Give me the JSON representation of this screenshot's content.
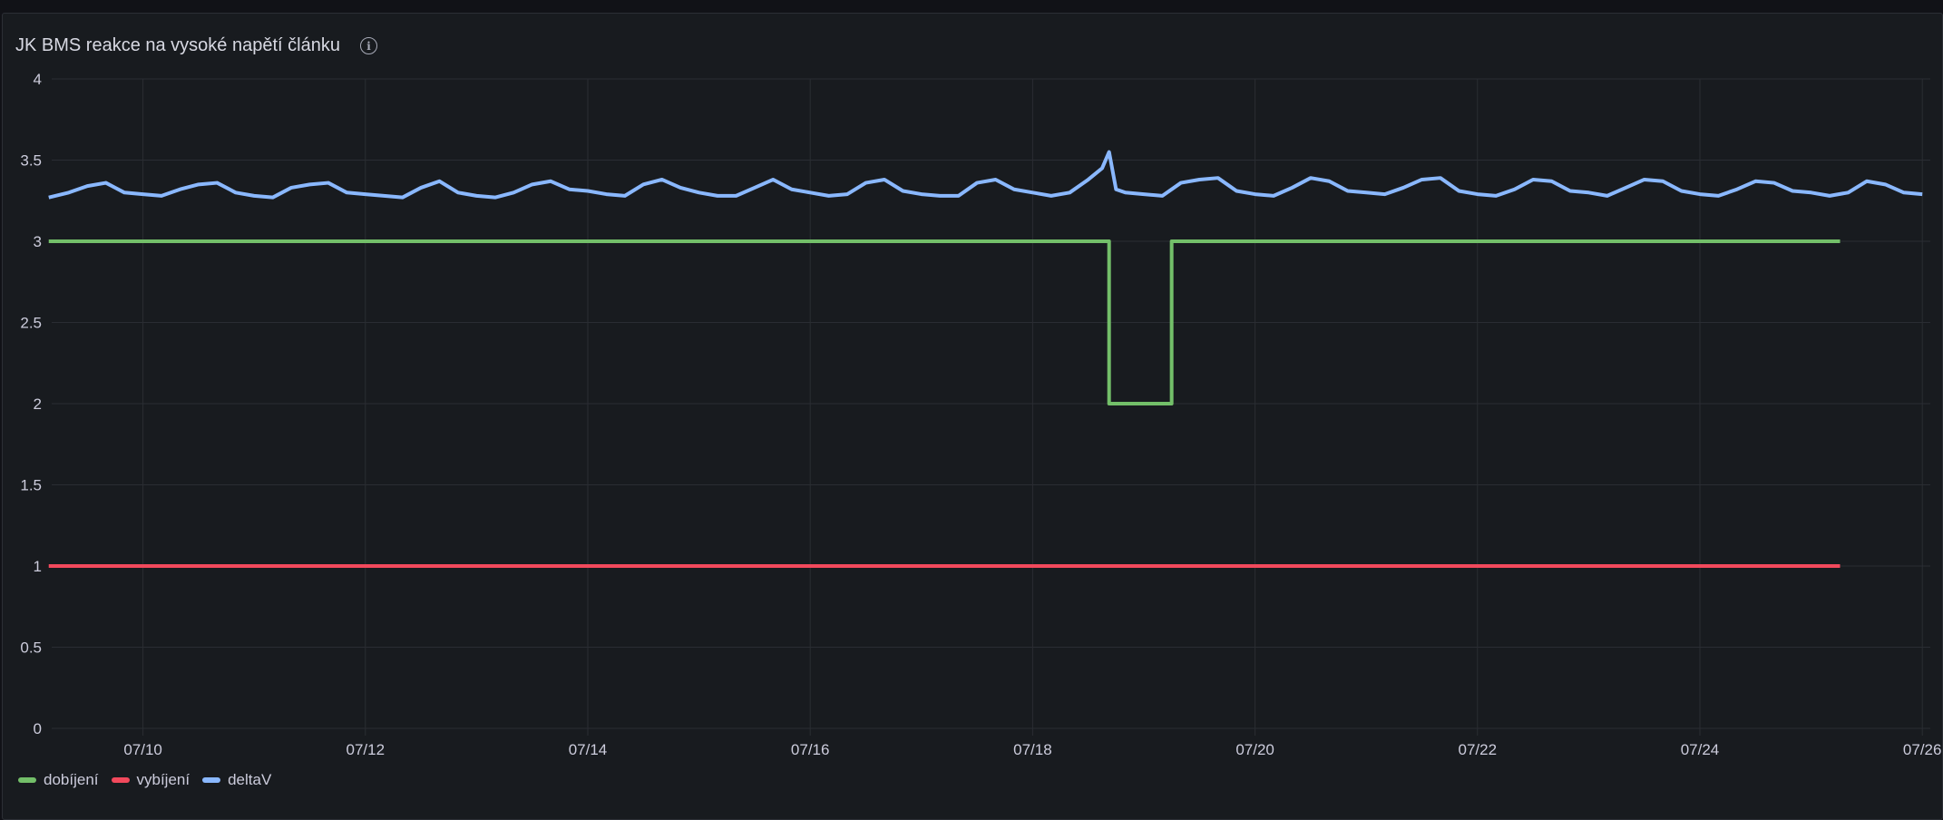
{
  "panel": {
    "title": "JK BMS reakce na vysoké napětí článku",
    "info_icon": "info-circle-icon"
  },
  "chart_data": {
    "type": "line",
    "title": "JK BMS reakce na vysoké napětí článku",
    "xlabel": "",
    "ylabel": "",
    "ylim": [
      0,
      4
    ],
    "y_ticks": [
      "0",
      "0.5",
      "1",
      "1.5",
      "2",
      "2.5",
      "3",
      "3.5",
      "4"
    ],
    "x_ticks": [
      "07/10",
      "07/12",
      "07/14",
      "07/16",
      "07/18",
      "07/20",
      "07/22",
      "07/24",
      "07/26"
    ],
    "grid": true,
    "legend": "bottom-left",
    "series": [
      {
        "name": "dobíjení",
        "color": "#73bf69",
        "step": true,
        "points": [
          [
            "07/09 03:40",
            3
          ],
          [
            "07/18 16:30",
            2
          ],
          [
            "07/19 06:00",
            3
          ],
          [
            "07/25 06:15",
            3
          ]
        ]
      },
      {
        "name": "vybíjení",
        "color": "#f2495c",
        "step": true,
        "points": [
          [
            "07/09 03:40",
            1
          ],
          [
            "07/25 06:15",
            1
          ]
        ]
      },
      {
        "name": "deltaV",
        "color": "#8ab8ff",
        "step": false,
        "points": [
          [
            "07/09 03:40",
            3.27
          ],
          [
            "07/09 08:00",
            3.3
          ],
          [
            "07/09 12:00",
            3.34
          ],
          [
            "07/09 16:00",
            3.36
          ],
          [
            "07/09 20:00",
            3.3
          ],
          [
            "07/10 00:00",
            3.29
          ],
          [
            "07/10 04:00",
            3.28
          ],
          [
            "07/10 08:00",
            3.32
          ],
          [
            "07/10 12:00",
            3.35
          ],
          [
            "07/10 16:00",
            3.36
          ],
          [
            "07/10 20:00",
            3.3
          ],
          [
            "07/11 00:00",
            3.28
          ],
          [
            "07/11 04:00",
            3.27
          ],
          [
            "07/11 08:00",
            3.33
          ],
          [
            "07/11 12:00",
            3.35
          ],
          [
            "07/11 16:00",
            3.36
          ],
          [
            "07/11 20:00",
            3.3
          ],
          [
            "07/12 00:00",
            3.29
          ],
          [
            "07/12 04:00",
            3.28
          ],
          [
            "07/12 08:00",
            3.27
          ],
          [
            "07/12 12:00",
            3.33
          ],
          [
            "07/12 16:00",
            3.37
          ],
          [
            "07/12 20:00",
            3.3
          ],
          [
            "07/13 00:00",
            3.28
          ],
          [
            "07/13 04:00",
            3.27
          ],
          [
            "07/13 08:00",
            3.3
          ],
          [
            "07/13 12:00",
            3.35
          ],
          [
            "07/13 16:00",
            3.37
          ],
          [
            "07/13 20:00",
            3.32
          ],
          [
            "07/14 00:00",
            3.31
          ],
          [
            "07/14 04:00",
            3.29
          ],
          [
            "07/14 08:00",
            3.28
          ],
          [
            "07/14 12:00",
            3.35
          ],
          [
            "07/14 16:00",
            3.38
          ],
          [
            "07/14 20:00",
            3.33
          ],
          [
            "07/15 00:00",
            3.3
          ],
          [
            "07/15 04:00",
            3.28
          ],
          [
            "07/15 08:00",
            3.28
          ],
          [
            "07/15 12:00",
            3.33
          ],
          [
            "07/15 16:00",
            3.38
          ],
          [
            "07/15 20:00",
            3.32
          ],
          [
            "07/16 00:00",
            3.3
          ],
          [
            "07/16 04:00",
            3.28
          ],
          [
            "07/16 08:00",
            3.29
          ],
          [
            "07/16 12:00",
            3.36
          ],
          [
            "07/16 16:00",
            3.38
          ],
          [
            "07/16 20:00",
            3.31
          ],
          [
            "07/17 00:00",
            3.29
          ],
          [
            "07/17 04:00",
            3.28
          ],
          [
            "07/17 08:00",
            3.28
          ],
          [
            "07/17 12:00",
            3.36
          ],
          [
            "07/17 16:00",
            3.38
          ],
          [
            "07/17 20:00",
            3.32
          ],
          [
            "07/18 00:00",
            3.3
          ],
          [
            "07/18 04:00",
            3.28
          ],
          [
            "07/18 08:00",
            3.3
          ],
          [
            "07/18 12:00",
            3.38
          ],
          [
            "07/18 15:00",
            3.45
          ],
          [
            "07/18 16:30",
            3.55
          ],
          [
            "07/18 18:00",
            3.32
          ],
          [
            "07/18 20:00",
            3.3
          ],
          [
            "07/19 00:00",
            3.29
          ],
          [
            "07/19 04:00",
            3.28
          ],
          [
            "07/19 08:00",
            3.36
          ],
          [
            "07/19 12:00",
            3.38
          ],
          [
            "07/19 16:00",
            3.39
          ],
          [
            "07/19 20:00",
            3.31
          ],
          [
            "07/20 00:00",
            3.29
          ],
          [
            "07/20 04:00",
            3.28
          ],
          [
            "07/20 08:00",
            3.33
          ],
          [
            "07/20 12:00",
            3.39
          ],
          [
            "07/20 16:00",
            3.37
          ],
          [
            "07/20 20:00",
            3.31
          ],
          [
            "07/21 00:00",
            3.3
          ],
          [
            "07/21 04:00",
            3.29
          ],
          [
            "07/21 08:00",
            3.33
          ],
          [
            "07/21 12:00",
            3.38
          ],
          [
            "07/21 16:00",
            3.39
          ],
          [
            "07/21 20:00",
            3.31
          ],
          [
            "07/22 00:00",
            3.29
          ],
          [
            "07/22 04:00",
            3.28
          ],
          [
            "07/22 08:00",
            3.32
          ],
          [
            "07/22 12:00",
            3.38
          ],
          [
            "07/22 16:00",
            3.37
          ],
          [
            "07/22 20:00",
            3.31
          ],
          [
            "07/23 00:00",
            3.3
          ],
          [
            "07/23 04:00",
            3.28
          ],
          [
            "07/23 08:00",
            3.33
          ],
          [
            "07/23 12:00",
            3.38
          ],
          [
            "07/23 16:00",
            3.37
          ],
          [
            "07/23 20:00",
            3.31
          ],
          [
            "07/24 00:00",
            3.29
          ],
          [
            "07/24 04:00",
            3.28
          ],
          [
            "07/24 08:00",
            3.32
          ],
          [
            "07/24 12:00",
            3.37
          ],
          [
            "07/24 16:00",
            3.36
          ],
          [
            "07/24 20:00",
            3.31
          ],
          [
            "07/25 00:00",
            3.3
          ],
          [
            "07/25 04:00",
            3.28
          ],
          [
            "07/25 08:00",
            3.3
          ],
          [
            "07/25 12:00",
            3.37
          ],
          [
            "07/25 16:00",
            3.35
          ],
          [
            "07/25 20:00",
            3.3
          ],
          [
            "07/26 00:00",
            3.29
          ]
        ]
      }
    ]
  }
}
